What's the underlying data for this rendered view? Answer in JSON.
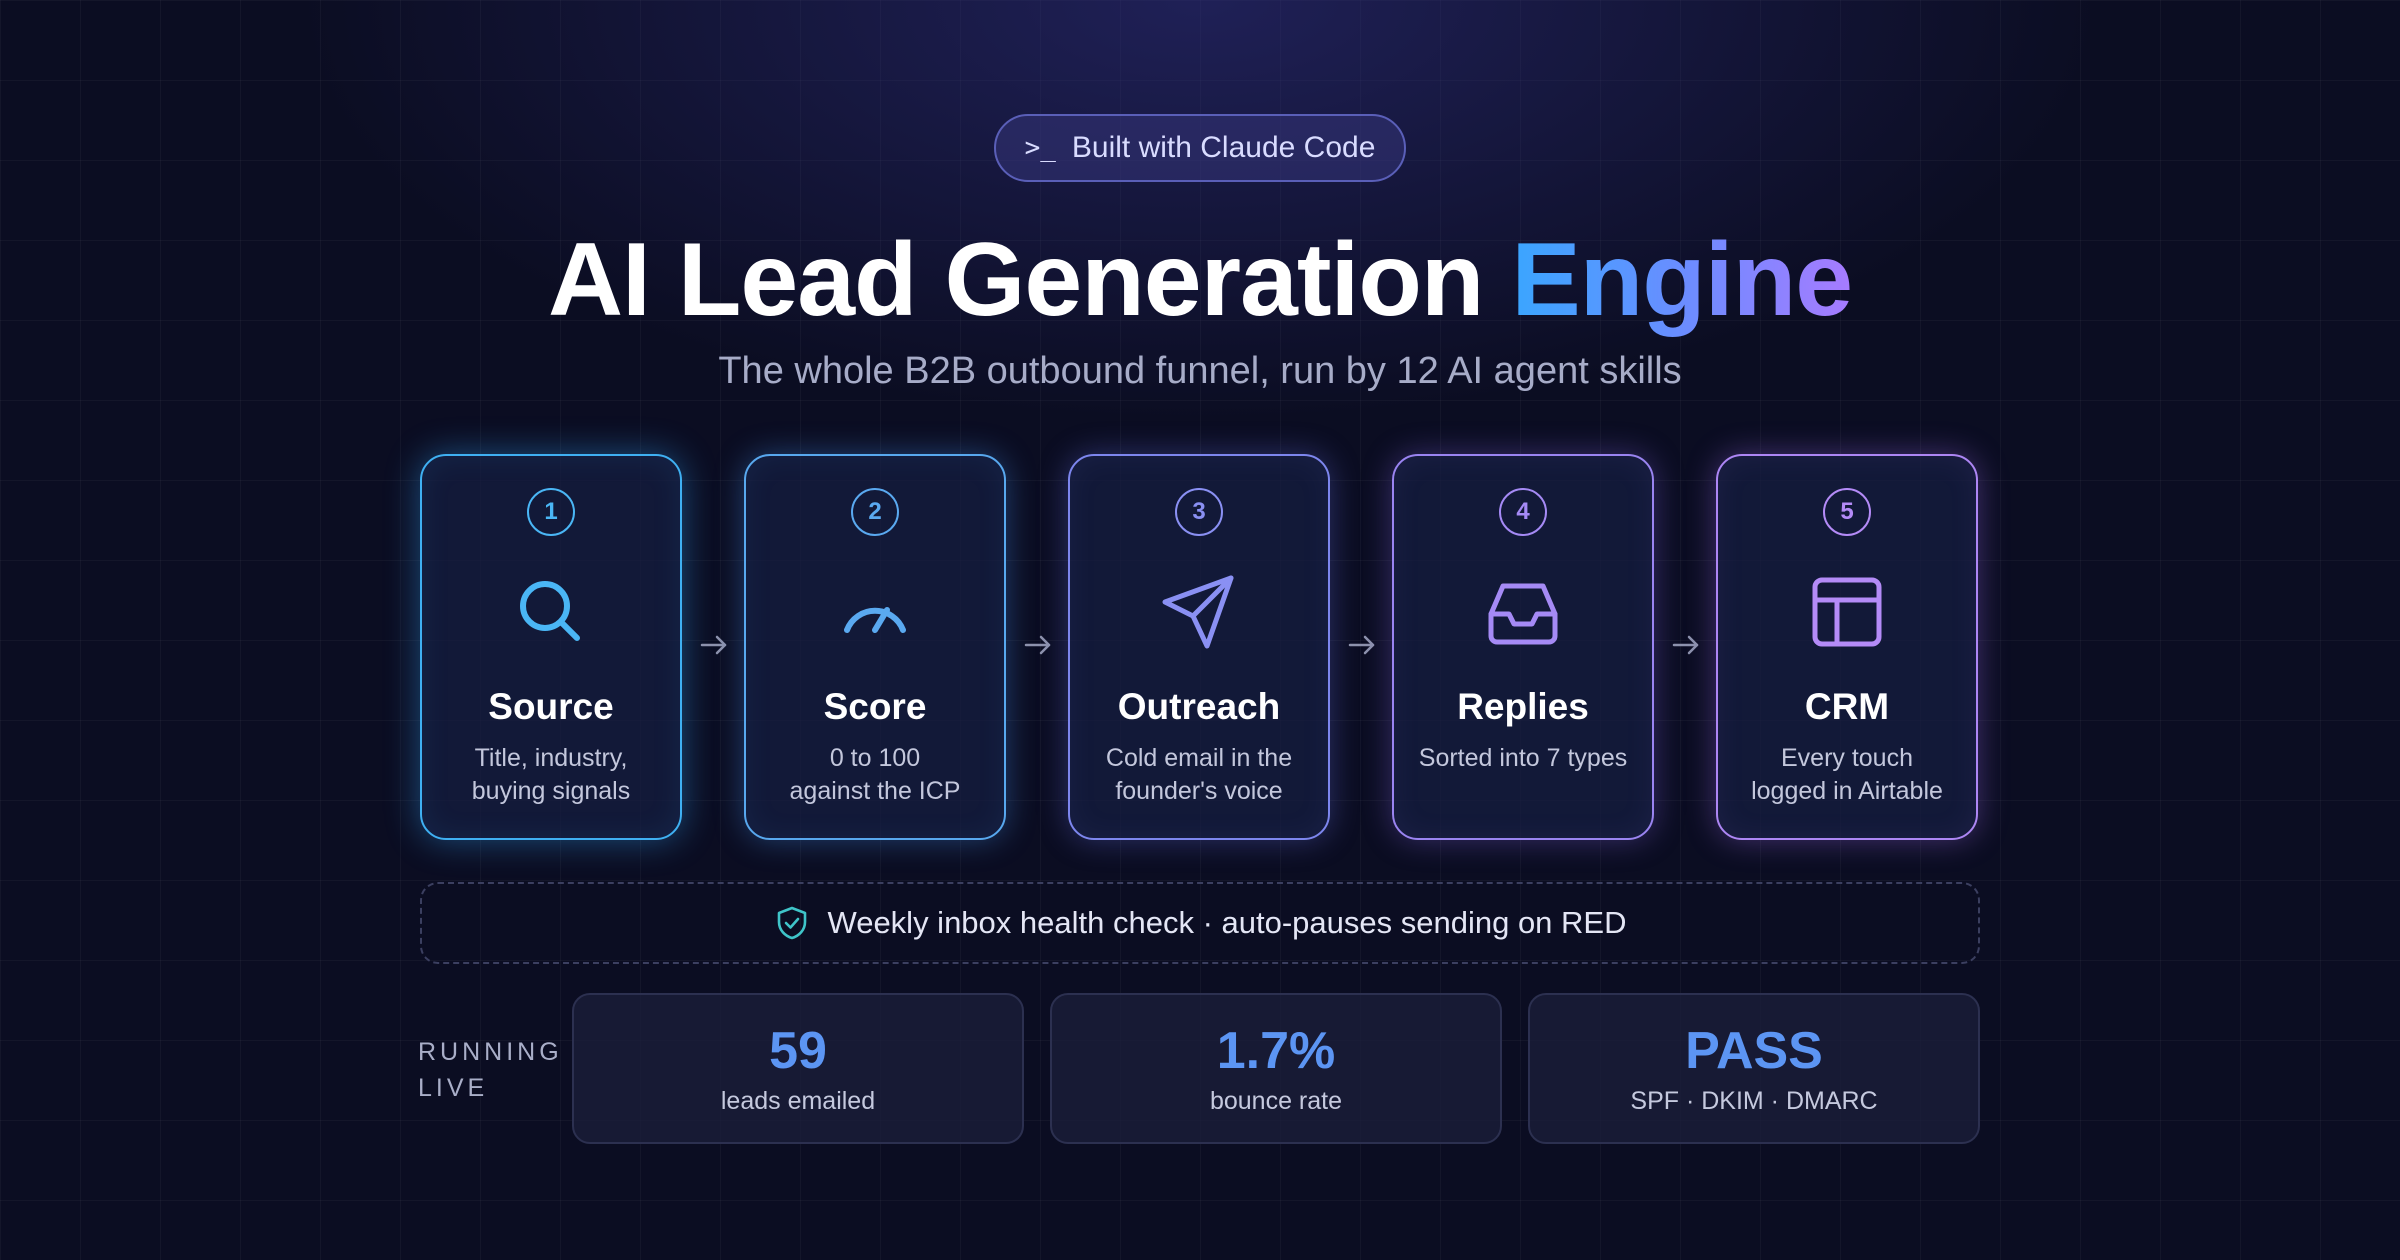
{
  "badge": {
    "prompt_glyph": ">_",
    "label": "Built with Claude Code"
  },
  "title": {
    "main": "AI Lead Generation",
    "accent": "Engine"
  },
  "subtitle": "The whole B2B outbound funnel, run by 12 AI agent skills",
  "steps": [
    {
      "number": "1",
      "icon": "search-icon",
      "name": "Source",
      "desc_line1": "Title, industry,",
      "desc_line2": "buying signals",
      "color": "#4ab6f5"
    },
    {
      "number": "2",
      "icon": "gauge-icon",
      "name": "Score",
      "desc_line1": "0 to 100",
      "desc_line2": "against the ICP",
      "color": "#5aa9f0"
    },
    {
      "number": "3",
      "icon": "send-icon",
      "name": "Outreach",
      "desc_line1": "Cold email in the",
      "desc_line2": "founder's voice",
      "color": "#8a90f3"
    },
    {
      "number": "4",
      "icon": "inbox-icon",
      "name": "Replies",
      "desc_line1": "Sorted into 7 types",
      "desc_line2": "",
      "color": "#a58af5"
    },
    {
      "number": "5",
      "icon": "layout-icon",
      "name": "CRM",
      "desc_line1": "Every touch",
      "desc_line2": "logged in Airtable",
      "color": "#b48bf7"
    }
  ],
  "health": {
    "icon": "shield-check-icon",
    "text": "Weekly inbox health check · auto-pauses sending on RED"
  },
  "running": {
    "line1": "RUNNING",
    "line2": "LIVE"
  },
  "stats": [
    {
      "value": "59",
      "label": "leads emailed"
    },
    {
      "value": "1.7%",
      "label": "bounce rate"
    },
    {
      "value": "PASS",
      "label": "SPF · DKIM · DMARC"
    }
  ],
  "colors": {
    "accent_blue": "#3aa6ff",
    "accent_purple": "#a77bff",
    "stat_value": "#5c95f3",
    "background": "#0b0d22"
  }
}
